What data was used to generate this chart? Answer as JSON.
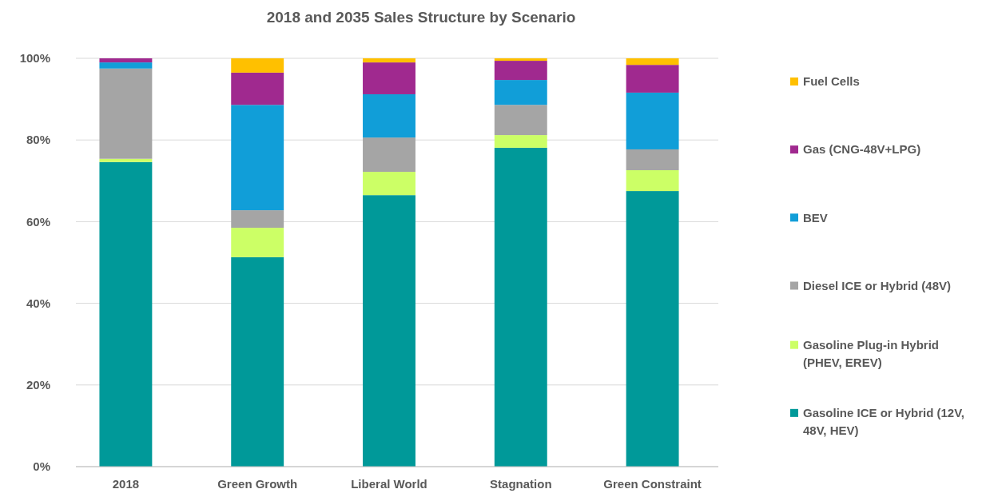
{
  "chart_data": {
    "type": "bar",
    "title": "2018 and 2035 Sales Structure by Scenario",
    "categories": [
      "2018",
      "Green Growth",
      "Liberal World",
      "Stagnation",
      "Green Constraint"
    ],
    "stacked": true,
    "ylim": [
      0,
      100
    ],
    "yticks": [
      {
        "value": 0,
        "label": "0%"
      },
      {
        "value": 20,
        "label": "20%"
      },
      {
        "value": 40,
        "label": "40%"
      },
      {
        "value": 60,
        "label": "60%"
      },
      {
        "value": 80,
        "label": "80%"
      },
      {
        "value": 100,
        "label": "100%"
      }
    ],
    "grid": "y",
    "legend": "right",
    "series": [
      {
        "name": "Gasoline ICE or Hybrid (12V, 48V, HEV)",
        "color": "#009999",
        "values": [
          74.6,
          51.3,
          66.5,
          78.1,
          67.5
        ]
      },
      {
        "name": "Gasoline Plug-in Hybrid (PHEV, EREV)",
        "color": "#ccff66",
        "values": [
          0.8,
          7.2,
          5.7,
          3.1,
          5.1
        ]
      },
      {
        "name": "Diesel ICE or Hybrid (48V)",
        "color": "#a5a5a5",
        "values": [
          22.1,
          4.3,
          8.4,
          7.4,
          5.1
        ]
      },
      {
        "name": "BEV",
        "color": "#119ed8",
        "values": [
          1.5,
          25.8,
          10.6,
          6.1,
          13.9
        ]
      },
      {
        "name": "Gas (CNG-48V+LPG)",
        "color": "#a0298f",
        "values": [
          1,
          7.9,
          7.8,
          4.7,
          6.8
        ]
      },
      {
        "name": "Fuel Cells",
        "color": "#ffc000",
        "values": [
          0,
          3.5,
          1,
          0.6,
          1.6
        ]
      }
    ]
  }
}
